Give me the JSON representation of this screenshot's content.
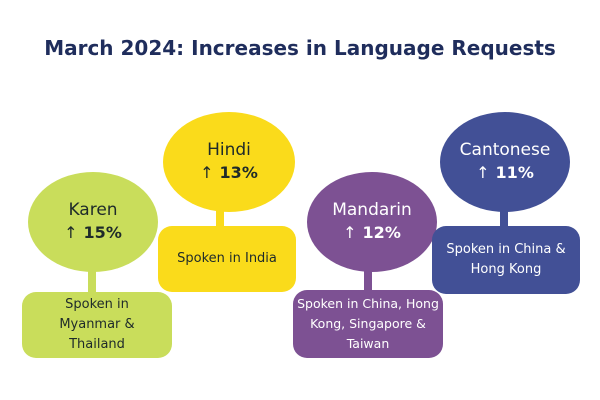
{
  "title": "March 2024: Increases in Language Requests",
  "colors": {
    "title": "#1f2d5c",
    "karen": "#c9dd5b",
    "hindi": "#fadb1b",
    "mandarin": "#7d5193",
    "cantonese": "#425096"
  },
  "languages": [
    {
      "name": "Karen",
      "arrow": "↑",
      "increase": "15%",
      "spoken": "Spoken in Myanmar & Thailand"
    },
    {
      "name": "Hindi",
      "arrow": "↑",
      "increase": "13%",
      "spoken": "Spoken in India"
    },
    {
      "name": "Mandarin",
      "arrow": "↑",
      "increase": "12%",
      "spoken": "Spoken in China, Hong Kong, Singapore & Taiwan"
    },
    {
      "name": "Cantonese",
      "arrow": "↑",
      "increase": "11%",
      "spoken": "Spoken in China & Hong Kong"
    }
  ]
}
